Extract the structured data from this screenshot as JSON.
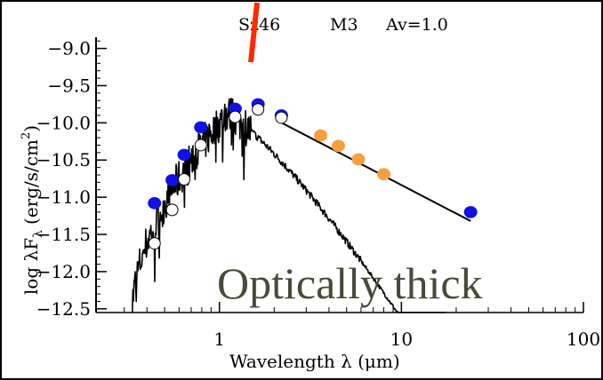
{
  "chart_data": {
    "type": "scatter",
    "title": {
      "object": "Sz46",
      "spectral_type": "M3",
      "extinction": "Av=1.0"
    },
    "xlabel": "Wavelength λ (μm)",
    "ylabel": "log λF",
    "ylabel_sub": "λ",
    "ylabel_units": "(erg/s/cm",
    "ylabel_units_sup": "2",
    "ylabel_units_close": ")",
    "x_scale": "log",
    "xlim": [
      0.21,
      100
    ],
    "ylim": [
      -12.55,
      -8.85
    ],
    "x_ticks": [
      {
        "value": 1,
        "label": "1"
      },
      {
        "value": 10,
        "label": "10"
      },
      {
        "value": 100,
        "label": "100"
      }
    ],
    "y_ticks": [
      {
        "value": -9.0,
        "label": "−9.0"
      },
      {
        "value": -9.5,
        "label": "−9.5"
      },
      {
        "value": -10.0,
        "label": "−10.0"
      },
      {
        "value": -10.5,
        "label": "−10.5"
      },
      {
        "value": -11.0,
        "label": "−11.0"
      },
      {
        "value": -11.5,
        "label": "−11.5"
      },
      {
        "value": -12.0,
        "label": "−12.0"
      },
      {
        "value": -12.5,
        "label": "−12.5"
      }
    ],
    "grid": false,
    "series": [
      {
        "marker": "filled-circle",
        "color": "#1010e8",
        "points": [
          {
            "x": 0.44,
            "y": -11.08
          },
          {
            "x": 0.55,
            "y": -10.77
          },
          {
            "x": 0.64,
            "y": -10.43
          },
          {
            "x": 0.79,
            "y": -10.06
          },
          {
            "x": 1.22,
            "y": -9.81
          },
          {
            "x": 1.63,
            "y": -9.75
          },
          {
            "x": 2.19,
            "y": -9.9
          },
          {
            "x": 24,
            "y": -11.2
          }
        ]
      },
      {
        "marker": "filled-circle",
        "color": "#f4a040",
        "points": [
          {
            "x": 3.6,
            "y": -10.17
          },
          {
            "x": 4.5,
            "y": -10.31
          },
          {
            "x": 5.8,
            "y": -10.49
          },
          {
            "x": 8.0,
            "y": -10.69
          }
        ]
      },
      {
        "marker": "open-circle",
        "color": "#000000",
        "points": [
          {
            "x": 0.44,
            "y": -11.62
          },
          {
            "x": 0.55,
            "y": -11.17
          },
          {
            "x": 0.64,
            "y": -10.76
          },
          {
            "x": 0.79,
            "y": -10.3
          },
          {
            "x": 1.22,
            "y": -9.92
          },
          {
            "x": 1.63,
            "y": -9.82
          },
          {
            "x": 2.19,
            "y": -9.93
          }
        ]
      }
    ],
    "lines": [
      {
        "kind": "power-law",
        "color": "#000000",
        "points": [
          {
            "x": 2.2,
            "y": -10.0
          },
          {
            "x": 24,
            "y": -11.32
          }
        ]
      },
      {
        "kind": "stellar-photosphere",
        "color": "#000000"
      }
    ],
    "annotation": "Optically thick",
    "marker_color_red": "#ff2a00"
  }
}
